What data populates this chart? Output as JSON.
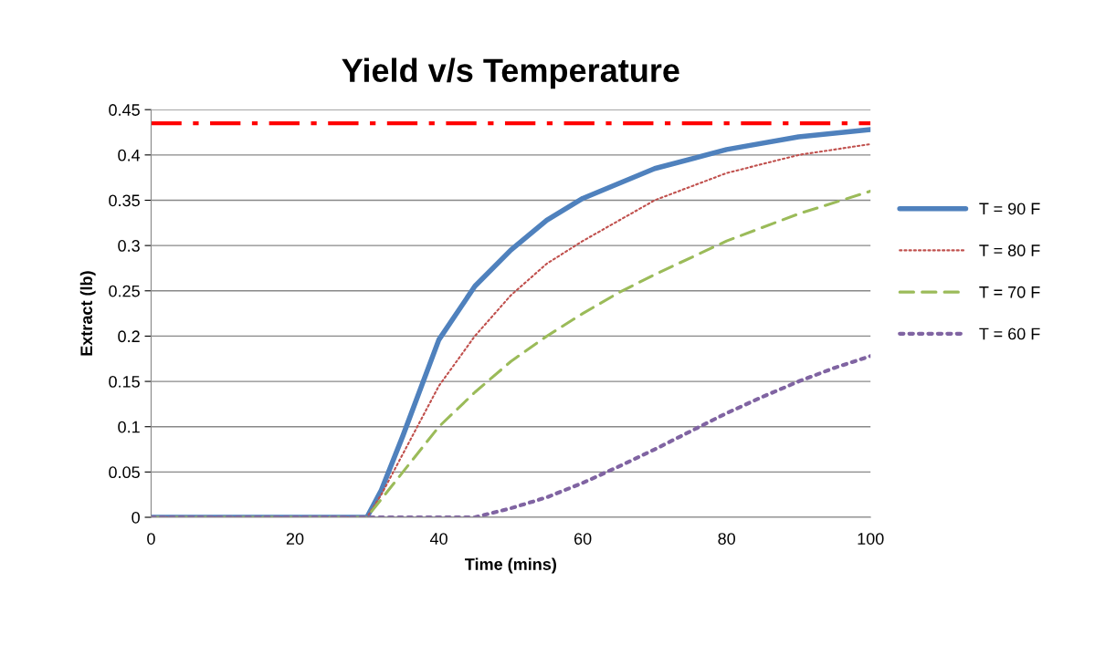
{
  "chart_data": {
    "type": "line",
    "title": "Yield v/s Temperature",
    "xlabel": "Time (mins)",
    "ylabel": "Extract (lb)",
    "xlim": [
      0,
      100
    ],
    "xticks": [
      0,
      20,
      40,
      60,
      80,
      100
    ],
    "ylim": [
      0,
      0.45
    ],
    "yticks": [
      0,
      0.05,
      0.1,
      0.15,
      0.2,
      0.25,
      0.3,
      0.35,
      0.4,
      0.45
    ],
    "grid": "y",
    "legend": "right",
    "marker": "none",
    "ref_lines": [
      {
        "axis": "y",
        "value": 0.435,
        "label": null,
        "color": "#ff0000",
        "line_style": "dashdot"
      }
    ],
    "series": [
      {
        "name": "T = 90 F",
        "color": "#4f81bd",
        "line_style": "solid",
        "x": [
          0,
          30,
          32,
          35,
          40,
          45,
          50,
          55,
          60,
          70,
          80,
          90,
          100
        ],
        "values": [
          0,
          0,
          0.03,
          0.09,
          0.196,
          0.255,
          0.295,
          0.328,
          0.352,
          0.385,
          0.406,
          0.42,
          0.428
        ]
      },
      {
        "name": "T = 80 F",
        "color": "#c0504d",
        "line_style": "dotted",
        "x": [
          0,
          30,
          32,
          35,
          40,
          45,
          50,
          55,
          60,
          70,
          80,
          90,
          100
        ],
        "values": [
          0,
          0,
          0.025,
          0.07,
          0.145,
          0.2,
          0.245,
          0.28,
          0.305,
          0.35,
          0.38,
          0.4,
          0.412
        ]
      },
      {
        "name": "T = 70 F",
        "color": "#9bbb59",
        "line_style": "dashed",
        "x": [
          0,
          30,
          35,
          40,
          45,
          50,
          55,
          60,
          65,
          70,
          80,
          90,
          100
        ],
        "values": [
          0,
          0,
          0.05,
          0.1,
          0.138,
          0.172,
          0.2,
          0.225,
          0.248,
          0.268,
          0.305,
          0.335,
          0.36
        ]
      },
      {
        "name": "T = 60 F",
        "color": "#8064a2",
        "line_style": "dotted",
        "x": [
          0,
          30,
          45,
          50,
          55,
          60,
          65,
          70,
          75,
          80,
          85,
          90,
          95,
          100
        ],
        "values": [
          0,
          0,
          0,
          0.01,
          0.022,
          0.038,
          0.056,
          0.075,
          0.095,
          0.115,
          0.133,
          0.15,
          0.165,
          0.178
        ]
      }
    ]
  }
}
